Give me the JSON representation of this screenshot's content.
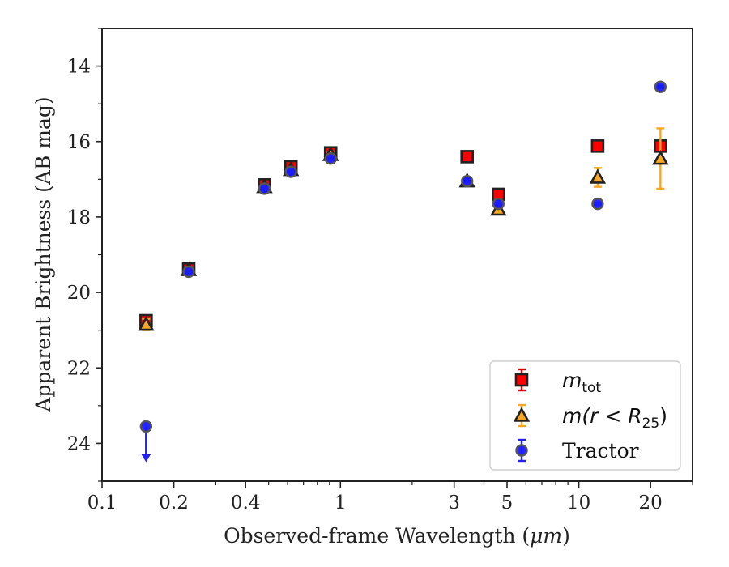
{
  "chart_data": {
    "type": "scatter",
    "xlabel_prefix": "Observed-frame Wavelength (",
    "xlabel_unit": "μm",
    "xlabel_suffix": ")",
    "ylabel": "Apparent Brightness (AB mag)",
    "xscale": "log",
    "xlim": [
      0.1,
      30
    ],
    "ylim": [
      25,
      13
    ],
    "y_inverted": true,
    "x_ticks": [
      {
        "value": 0.1,
        "label": "0.1"
      },
      {
        "value": 0.2,
        "label": "0.2"
      },
      {
        "value": 0.4,
        "label": "0.4"
      },
      {
        "value": 1,
        "label": "1"
      },
      {
        "value": 3,
        "label": "3"
      },
      {
        "value": 5,
        "label": "5"
      },
      {
        "value": 10,
        "label": "10"
      },
      {
        "value": 20,
        "label": "20"
      }
    ],
    "x_minor_ticks": [
      0.3,
      0.5,
      0.6,
      0.7,
      0.8,
      0.9,
      2,
      4,
      6,
      7,
      8,
      9,
      30
    ],
    "y_ticks": [
      14,
      16,
      18,
      20,
      22,
      24
    ],
    "y_minor_ticks": [
      13,
      15,
      17,
      19,
      21,
      23,
      25
    ],
    "grid": false,
    "legend_position": "lower-right",
    "series": [
      {
        "name": "m_tot",
        "legend_main": "m",
        "legend_sub": "tot",
        "marker": "square",
        "fill": "#ff0000",
        "edge": "#222222",
        "errcolor": "#dd0000",
        "points": [
          {
            "x": 0.153,
            "y": 20.75,
            "err": 0.1
          },
          {
            "x": 0.231,
            "y": 19.38,
            "err": 0.05
          },
          {
            "x": 0.48,
            "y": 17.15,
            "err": 0.06
          },
          {
            "x": 0.62,
            "y": 16.67,
            "err": 0.06
          },
          {
            "x": 0.91,
            "y": 16.3,
            "err": 0.05
          },
          {
            "x": 3.4,
            "y": 16.4,
            "err": 0.05
          },
          {
            "x": 4.6,
            "y": 17.4,
            "err": 0.05
          },
          {
            "x": 12.0,
            "y": 16.12,
            "err": 0.05
          },
          {
            "x": 22.0,
            "y": 16.12,
            "err": 0.05
          }
        ]
      },
      {
        "name": "m(r<R25)",
        "legend_main": "m(r < R",
        "legend_sub": "25",
        "legend_tail": ")",
        "marker": "triangle",
        "fill": "#f5a623",
        "edge": "#222222",
        "errcolor": "#f5a623",
        "points": [
          {
            "x": 0.153,
            "y": 20.85,
            "err": 0.15
          },
          {
            "x": 0.231,
            "y": 19.4,
            "err": 0.05
          },
          {
            "x": 0.48,
            "y": 17.2,
            "err": 0.05
          },
          {
            "x": 0.62,
            "y": 16.75,
            "err": 0.05
          },
          {
            "x": 0.91,
            "y": 16.35,
            "err": 0.05
          },
          {
            "x": 3.4,
            "y": 17.05,
            "err": 0.05
          },
          {
            "x": 4.6,
            "y": 17.8,
            "err": 0.08
          },
          {
            "x": 12.0,
            "y": 16.95,
            "err": 0.25
          },
          {
            "x": 22.0,
            "y": 16.45,
            "err": 0.8
          }
        ]
      },
      {
        "name": "Tractor",
        "legend_main": "Tractor",
        "marker": "circle",
        "fill": "#1a1aff",
        "edge": "#555555",
        "errcolor": "#2222ee",
        "points": [
          {
            "x": 0.153,
            "y": 23.55,
            "err": 0,
            "upper_limit": true
          },
          {
            "x": 0.231,
            "y": 19.45,
            "err": 0.03
          },
          {
            "x": 0.48,
            "y": 17.25,
            "err": 0.03
          },
          {
            "x": 0.62,
            "y": 16.8,
            "err": 0.03
          },
          {
            "x": 0.91,
            "y": 16.45,
            "err": 0.03
          },
          {
            "x": 3.4,
            "y": 17.05,
            "err": 0.03
          },
          {
            "x": 4.6,
            "y": 17.65,
            "err": 0.03
          },
          {
            "x": 12.0,
            "y": 17.65,
            "err": 0.03
          },
          {
            "x": 22.0,
            "y": 14.55,
            "err": 0.03
          }
        ]
      }
    ]
  }
}
